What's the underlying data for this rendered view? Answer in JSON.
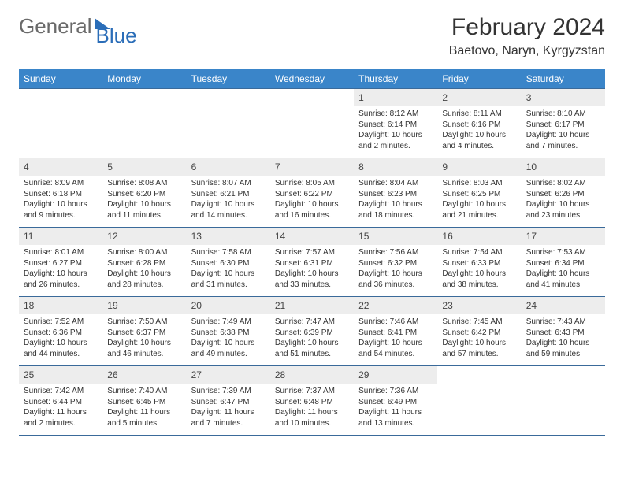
{
  "logo": {
    "general": "General",
    "blue": "Blue"
  },
  "title": "February 2024",
  "location": "Baetovo, Naryn, Kyrgyzstan",
  "colors": {
    "header_bg": "#3a85c9",
    "header_text": "#ffffff",
    "border": "#3a6a9a",
    "daynum_bg": "#ededed",
    "text": "#333333",
    "logo_blue": "#2a6db8"
  },
  "daynames": [
    "Sunday",
    "Monday",
    "Tuesday",
    "Wednesday",
    "Thursday",
    "Friday",
    "Saturday"
  ],
  "weeks": [
    [
      {
        "empty": true
      },
      {
        "empty": true
      },
      {
        "empty": true
      },
      {
        "empty": true
      },
      {
        "n": "1",
        "sunrise": "Sunrise: 8:12 AM",
        "sunset": "Sunset: 6:14 PM",
        "daylight": "Daylight: 10 hours and 2 minutes."
      },
      {
        "n": "2",
        "sunrise": "Sunrise: 8:11 AM",
        "sunset": "Sunset: 6:16 PM",
        "daylight": "Daylight: 10 hours and 4 minutes."
      },
      {
        "n": "3",
        "sunrise": "Sunrise: 8:10 AM",
        "sunset": "Sunset: 6:17 PM",
        "daylight": "Daylight: 10 hours and 7 minutes."
      }
    ],
    [
      {
        "n": "4",
        "sunrise": "Sunrise: 8:09 AM",
        "sunset": "Sunset: 6:18 PM",
        "daylight": "Daylight: 10 hours and 9 minutes."
      },
      {
        "n": "5",
        "sunrise": "Sunrise: 8:08 AM",
        "sunset": "Sunset: 6:20 PM",
        "daylight": "Daylight: 10 hours and 11 minutes."
      },
      {
        "n": "6",
        "sunrise": "Sunrise: 8:07 AM",
        "sunset": "Sunset: 6:21 PM",
        "daylight": "Daylight: 10 hours and 14 minutes."
      },
      {
        "n": "7",
        "sunrise": "Sunrise: 8:05 AM",
        "sunset": "Sunset: 6:22 PM",
        "daylight": "Daylight: 10 hours and 16 minutes."
      },
      {
        "n": "8",
        "sunrise": "Sunrise: 8:04 AM",
        "sunset": "Sunset: 6:23 PM",
        "daylight": "Daylight: 10 hours and 18 minutes."
      },
      {
        "n": "9",
        "sunrise": "Sunrise: 8:03 AM",
        "sunset": "Sunset: 6:25 PM",
        "daylight": "Daylight: 10 hours and 21 minutes."
      },
      {
        "n": "10",
        "sunrise": "Sunrise: 8:02 AM",
        "sunset": "Sunset: 6:26 PM",
        "daylight": "Daylight: 10 hours and 23 minutes."
      }
    ],
    [
      {
        "n": "11",
        "sunrise": "Sunrise: 8:01 AM",
        "sunset": "Sunset: 6:27 PM",
        "daylight": "Daylight: 10 hours and 26 minutes."
      },
      {
        "n": "12",
        "sunrise": "Sunrise: 8:00 AM",
        "sunset": "Sunset: 6:28 PM",
        "daylight": "Daylight: 10 hours and 28 minutes."
      },
      {
        "n": "13",
        "sunrise": "Sunrise: 7:58 AM",
        "sunset": "Sunset: 6:30 PM",
        "daylight": "Daylight: 10 hours and 31 minutes."
      },
      {
        "n": "14",
        "sunrise": "Sunrise: 7:57 AM",
        "sunset": "Sunset: 6:31 PM",
        "daylight": "Daylight: 10 hours and 33 minutes."
      },
      {
        "n": "15",
        "sunrise": "Sunrise: 7:56 AM",
        "sunset": "Sunset: 6:32 PM",
        "daylight": "Daylight: 10 hours and 36 minutes."
      },
      {
        "n": "16",
        "sunrise": "Sunrise: 7:54 AM",
        "sunset": "Sunset: 6:33 PM",
        "daylight": "Daylight: 10 hours and 38 minutes."
      },
      {
        "n": "17",
        "sunrise": "Sunrise: 7:53 AM",
        "sunset": "Sunset: 6:34 PM",
        "daylight": "Daylight: 10 hours and 41 minutes."
      }
    ],
    [
      {
        "n": "18",
        "sunrise": "Sunrise: 7:52 AM",
        "sunset": "Sunset: 6:36 PM",
        "daylight": "Daylight: 10 hours and 44 minutes."
      },
      {
        "n": "19",
        "sunrise": "Sunrise: 7:50 AM",
        "sunset": "Sunset: 6:37 PM",
        "daylight": "Daylight: 10 hours and 46 minutes."
      },
      {
        "n": "20",
        "sunrise": "Sunrise: 7:49 AM",
        "sunset": "Sunset: 6:38 PM",
        "daylight": "Daylight: 10 hours and 49 minutes."
      },
      {
        "n": "21",
        "sunrise": "Sunrise: 7:47 AM",
        "sunset": "Sunset: 6:39 PM",
        "daylight": "Daylight: 10 hours and 51 minutes."
      },
      {
        "n": "22",
        "sunrise": "Sunrise: 7:46 AM",
        "sunset": "Sunset: 6:41 PM",
        "daylight": "Daylight: 10 hours and 54 minutes."
      },
      {
        "n": "23",
        "sunrise": "Sunrise: 7:45 AM",
        "sunset": "Sunset: 6:42 PM",
        "daylight": "Daylight: 10 hours and 57 minutes."
      },
      {
        "n": "24",
        "sunrise": "Sunrise: 7:43 AM",
        "sunset": "Sunset: 6:43 PM",
        "daylight": "Daylight: 10 hours and 59 minutes."
      }
    ],
    [
      {
        "n": "25",
        "sunrise": "Sunrise: 7:42 AM",
        "sunset": "Sunset: 6:44 PM",
        "daylight": "Daylight: 11 hours and 2 minutes."
      },
      {
        "n": "26",
        "sunrise": "Sunrise: 7:40 AM",
        "sunset": "Sunset: 6:45 PM",
        "daylight": "Daylight: 11 hours and 5 minutes."
      },
      {
        "n": "27",
        "sunrise": "Sunrise: 7:39 AM",
        "sunset": "Sunset: 6:47 PM",
        "daylight": "Daylight: 11 hours and 7 minutes."
      },
      {
        "n": "28",
        "sunrise": "Sunrise: 7:37 AM",
        "sunset": "Sunset: 6:48 PM",
        "daylight": "Daylight: 11 hours and 10 minutes."
      },
      {
        "n": "29",
        "sunrise": "Sunrise: 7:36 AM",
        "sunset": "Sunset: 6:49 PM",
        "daylight": "Daylight: 11 hours and 13 minutes."
      },
      {
        "empty": true
      },
      {
        "empty": true
      }
    ]
  ]
}
